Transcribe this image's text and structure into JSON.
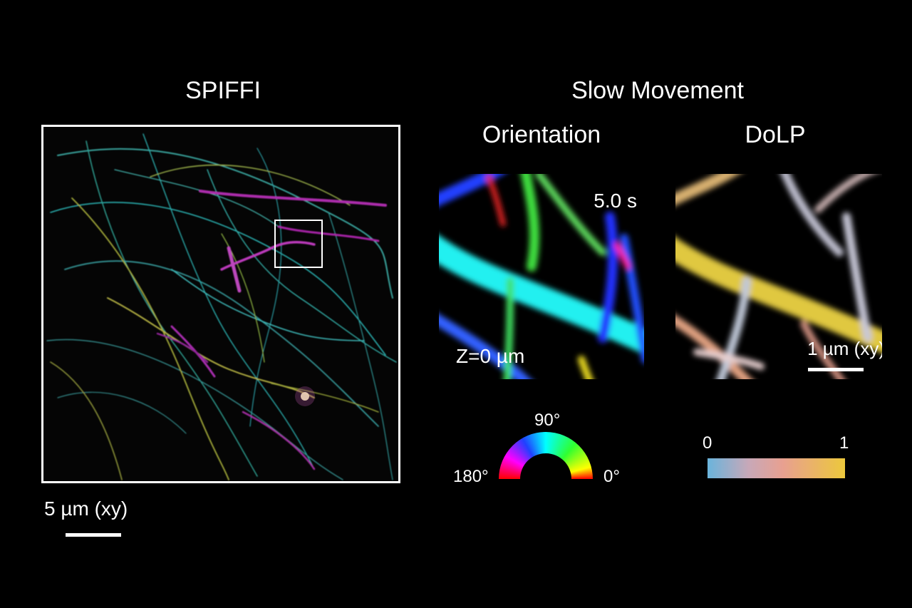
{
  "titles": {
    "left": "SPIFFI",
    "right": "Slow Movement",
    "orientation": "Orientation",
    "dolp": "DoLP"
  },
  "left_panel": {
    "scale_label": "5 µm (xy)"
  },
  "orientation_panel": {
    "time_label": "5.0 s",
    "z_label": "Z=0 µm"
  },
  "dolp_panel": {
    "scale_label": "1 µm (xy)"
  },
  "orientation_legend": {
    "top": "90°",
    "left": "180°",
    "right": "0°"
  },
  "dolp_legend": {
    "min": "0",
    "max": "1",
    "colors": [
      "#6ab4dc",
      "#e8a090",
      "#ecc83c"
    ]
  }
}
